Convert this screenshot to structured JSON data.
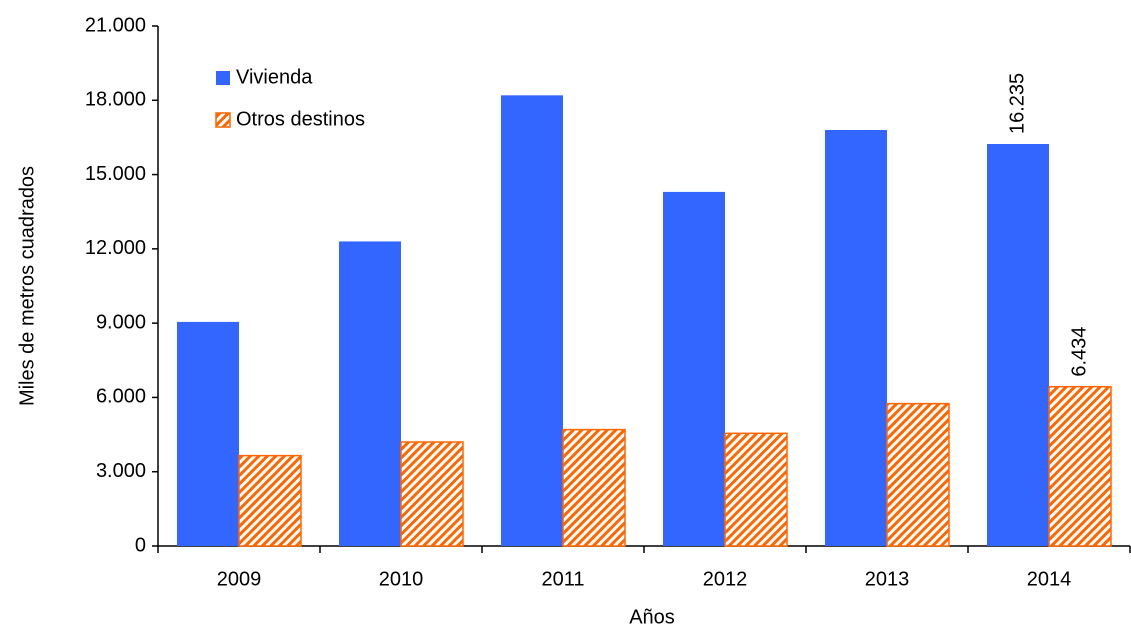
{
  "chart_data": {
    "type": "bar",
    "y_label": "Miles de metros cuadrados",
    "x_label": "Años",
    "categories": [
      "2009",
      "2010",
      "2011",
      "2012",
      "2013",
      "2014"
    ],
    "series": [
      {
        "name": "Vivienda",
        "color": "#3366ff",
        "values": [
          9050,
          12300,
          18200,
          14300,
          16800,
          16235
        ],
        "value_labels": [
          null,
          null,
          null,
          null,
          null,
          "16.235"
        ]
      },
      {
        "name": "Otros destinos",
        "color": "#ff6600",
        "pattern": "hatch",
        "values": [
          3650,
          4200,
          4700,
          4550,
          5750,
          6434
        ],
        "value_labels": [
          null,
          null,
          null,
          null,
          null,
          "6.434"
        ]
      }
    ],
    "ylim": [
      0,
      21000
    ],
    "yticks": [
      0,
      {
        "value": 3000,
        "label": "3.000"
      },
      {
        "value": 6000,
        "label": "6.000"
      },
      {
        "value": 9000,
        "label": "9.000"
      },
      {
        "value": 12000,
        "label": "12.000"
      },
      {
        "value": 15000,
        "label": "15.000"
      },
      {
        "value": 18000,
        "label": "18.000"
      },
      {
        "value": 21000,
        "label": "21.000"
      }
    ],
    "legend": "top-left",
    "grid": false
  }
}
